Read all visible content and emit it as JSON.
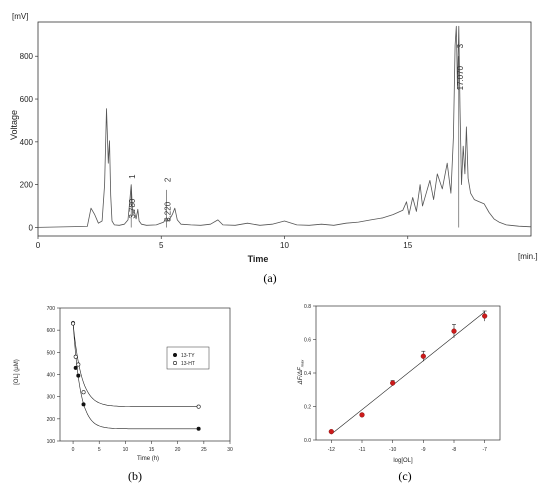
{
  "chart_data": [
    {
      "id": "a",
      "type": "line",
      "caption": "(a)",
      "y_unit": "[mV]",
      "x_unit": "[min.]",
      "xlabel": "Time",
      "ylabel": "Voltage",
      "xlim": [
        0,
        20
      ],
      "ylim": [
        -40,
        960
      ],
      "x_ticks": [
        0,
        5,
        10,
        15
      ],
      "y_ticks": [
        0,
        200,
        400,
        600,
        800
      ],
      "x_tick_labels": [
        "0",
        "5",
        "10",
        "15"
      ],
      "y_tick_labels": [
        "0",
        "200",
        "400",
        "600",
        "800"
      ],
      "peak_labels": [
        {
          "x": 3.78,
          "y": 200,
          "number": "1",
          "time": "3.780"
        },
        {
          "x": 5.22,
          "y": 185,
          "number": "2",
          "time": "5.220"
        },
        {
          "x": 17.07,
          "y": 810,
          "number": "3",
          "time": "17.070"
        }
      ],
      "series": [
        {
          "x": [
            0,
            2.0,
            2.15,
            2.3,
            2.45,
            2.6,
            2.7,
            2.78,
            2.85,
            2.9,
            2.95,
            3.0,
            3.1,
            3.3,
            3.5,
            3.65,
            3.72,
            3.78,
            3.84,
            3.9,
            3.98,
            4.05,
            4.1,
            4.2,
            4.4,
            4.8,
            5.1,
            5.2,
            5.3,
            5.45,
            5.55,
            5.65,
            5.8,
            6.2,
            6.6,
            7.0,
            7.3,
            7.5,
            8.0,
            8.5,
            9.0,
            9.5,
            10.0,
            10.5,
            11.0,
            11.5,
            12.0,
            12.5,
            13.0,
            13.5,
            14.0,
            14.4,
            14.8,
            14.95,
            15.05,
            15.2,
            15.35,
            15.5,
            15.6,
            15.75,
            15.9,
            16.05,
            16.2,
            16.4,
            16.6,
            16.75,
            16.85,
            16.92,
            16.97,
            17.02,
            17.07,
            17.12,
            17.18,
            17.25,
            17.32,
            17.38,
            17.45,
            17.55,
            17.7,
            17.9,
            18.1,
            18.3,
            18.5,
            18.7,
            19.0,
            19.5,
            20.0
          ],
          "y": [
            0,
            5,
            90,
            60,
            20,
            30,
            200,
            555,
            300,
            405,
            150,
            30,
            12,
            10,
            15,
            35,
            120,
            200,
            60,
            80,
            40,
            85,
            30,
            15,
            10,
            12,
            25,
            45,
            30,
            60,
            90,
            35,
            15,
            12,
            10,
            15,
            35,
            12,
            10,
            20,
            10,
            15,
            30,
            12,
            10,
            15,
            10,
            20,
            25,
            35,
            45,
            60,
            80,
            120,
            60,
            140,
            75,
            200,
            100,
            160,
            220,
            130,
            250,
            180,
            300,
            160,
            420,
            850,
            940,
            650,
            940,
            560,
            200,
            380,
            250,
            470,
            230,
            160,
            130,
            120,
            110,
            70,
            40,
            25,
            12,
            6,
            3
          ]
        }
      ]
    },
    {
      "id": "b",
      "type": "scatter",
      "caption": "(b)",
      "xlabel": "Time (h)",
      "ylabel": "[OL] (µM)",
      "xlim": [
        -2.5,
        30
      ],
      "ylim": [
        100,
        700
      ],
      "x_ticks": [
        0,
        5,
        10,
        15,
        20,
        25,
        30
      ],
      "y_ticks": [
        100,
        200,
        300,
        400,
        500,
        600,
        700
      ],
      "x_tick_labels": [
        "0",
        "5",
        "10",
        "15",
        "20",
        "25",
        "30"
      ],
      "y_tick_labels": [
        "100",
        "200",
        "300",
        "400",
        "500",
        "600",
        "700"
      ],
      "legend_position": "right",
      "series": [
        {
          "name": "13-TY",
          "marker": "filled",
          "x": [
            0,
            0.5,
            1,
            2,
            24
          ],
          "y": [
            632,
            430,
            395,
            265,
            155
          ],
          "error": [
            10,
            8,
            6,
            6,
            4
          ]
        },
        {
          "name": "13-HT",
          "marker": "open",
          "x": [
            0,
            0.5,
            1,
            2,
            24
          ],
          "y": [
            630,
            480,
            445,
            320,
            255
          ],
          "error": [
            10,
            8,
            6,
            6,
            4
          ]
        }
      ],
      "fits": [
        {
          "series": "13-TY",
          "plateau": 155,
          "start": 632,
          "rate": 0.72
        },
        {
          "series": "13-HT",
          "plateau": 255,
          "start": 630,
          "rate": 0.62
        }
      ]
    },
    {
      "id": "c",
      "type": "scatter",
      "caption": "(c)",
      "xlabel": "log[OL]",
      "ylabel": "ΔF/ΔFmax",
      "ylabel_main": "ΔF/ΔF",
      "ylabel_sub": "max",
      "xlim": [
        -12.5,
        -6.5
      ],
      "ylim": [
        0,
        0.8
      ],
      "x_ticks": [
        -12,
        -11,
        -10,
        -9,
        -8,
        -7
      ],
      "y_ticks": [
        0,
        0.2,
        0.4,
        0.6,
        0.8
      ],
      "x_tick_labels": [
        "-12",
        "-11",
        "-10",
        "-9",
        "-8",
        "-7"
      ],
      "y_tick_labels": [
        "0.0",
        "0.2",
        "0.4",
        "0.6",
        "0.8"
      ],
      "marker_color": "#cc1a1a",
      "series": [
        {
          "x": [
            -12,
            -11,
            -10,
            -9,
            -8,
            -7
          ],
          "y": [
            0.05,
            0.15,
            0.34,
            0.5,
            0.65,
            0.74
          ],
          "error": [
            0.005,
            0.005,
            0.015,
            0.03,
            0.04,
            0.03
          ]
        }
      ],
      "fit": {
        "type": "linear",
        "x": [
          -12,
          -7
        ],
        "y": [
          0.035,
          0.765
        ]
      }
    }
  ]
}
